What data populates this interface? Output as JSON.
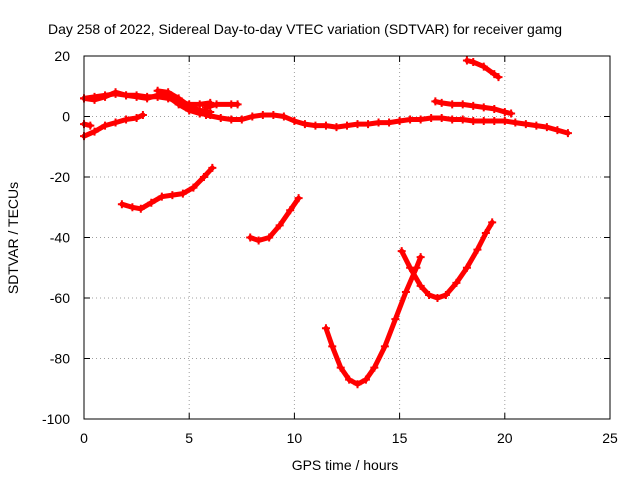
{
  "chart_data": {
    "type": "scatter",
    "title": "Day 258 of 2022, Sidereal Day-to-day VTEC variation (SDTVAR) for receiver gamg",
    "xlabel": "GPS time / hours",
    "ylabel": "SDTVAR / TECUs",
    "xlim": [
      0,
      25
    ],
    "ylim": [
      -100,
      20
    ],
    "xticks": [
      0,
      5,
      10,
      15,
      20,
      25
    ],
    "yticks": [
      -100,
      -80,
      -60,
      -40,
      -20,
      0,
      20
    ],
    "grid": true,
    "marker": "plus",
    "series_color": "#ff0000",
    "series": [
      {
        "name": "arc-1",
        "points": [
          [
            0,
            6
          ],
          [
            0.5,
            5.5
          ],
          [
            1,
            6.5
          ],
          [
            1.5,
            8
          ],
          [
            2,
            7
          ],
          [
            2.5,
            6.5
          ],
          [
            3,
            6
          ],
          [
            3.5,
            7
          ],
          [
            4,
            6.5
          ],
          [
            4.5,
            4
          ],
          [
            5,
            2
          ],
          [
            5.5,
            1
          ],
          [
            6,
            0.5
          ]
        ]
      },
      {
        "name": "arc-2",
        "points": [
          [
            0,
            6
          ],
          [
            0.5,
            6.5
          ],
          [
            1,
            7
          ],
          [
            1.5,
            7.5
          ],
          [
            2,
            7
          ],
          [
            2.5,
            7
          ],
          [
            3,
            6.5
          ],
          [
            3.5,
            6.5
          ],
          [
            4,
            6
          ],
          [
            4.5,
            5
          ],
          [
            5,
            4
          ],
          [
            5.5,
            4
          ],
          [
            6,
            4.5
          ]
        ]
      },
      {
        "name": "arc-3",
        "points": [
          [
            3.5,
            8.5
          ],
          [
            4,
            8
          ],
          [
            4.5,
            6
          ],
          [
            5,
            3.5
          ],
          [
            5.5,
            2
          ],
          [
            6,
            1.5
          ]
        ]
      },
      {
        "name": "arc-4",
        "points": [
          [
            5.8,
            3
          ],
          [
            6.3,
            4
          ],
          [
            7,
            4
          ],
          [
            7.3,
            4
          ]
        ]
      },
      {
        "name": "arc-5",
        "points": [
          [
            0,
            -6.5
          ],
          [
            0.5,
            -5
          ],
          [
            1,
            -3
          ],
          [
            1.5,
            -2
          ],
          [
            2,
            -1
          ],
          [
            2.5,
            -0.5
          ],
          [
            2.8,
            0.5
          ]
        ]
      },
      {
        "name": "arc-6",
        "points": [
          [
            0,
            -2.5
          ],
          [
            0.3,
            -3
          ]
        ]
      },
      {
        "name": "arc-7",
        "points": [
          [
            5.8,
            0.5
          ],
          [
            6.5,
            -0.5
          ],
          [
            7,
            -1
          ],
          [
            7.5,
            -1
          ],
          [
            8,
            0
          ],
          [
            8.5,
            0.5
          ],
          [
            9,
            0.5
          ],
          [
            9.5,
            0
          ],
          [
            10,
            -1.5
          ],
          [
            10.5,
            -2.5
          ],
          [
            11,
            -3
          ],
          [
            11.5,
            -3
          ],
          [
            12,
            -3.5
          ],
          [
            12.5,
            -3
          ],
          [
            13,
            -2.5
          ],
          [
            13.5,
            -2.5
          ],
          [
            14,
            -2
          ],
          [
            14.5,
            -2
          ],
          [
            15,
            -1.5
          ],
          [
            15.5,
            -1
          ],
          [
            16,
            -1
          ],
          [
            16.5,
            -0.5
          ],
          [
            17,
            -0.5
          ],
          [
            17.5,
            -1
          ],
          [
            18,
            -1
          ],
          [
            18.5,
            -1.5
          ],
          [
            19,
            -1.5
          ],
          [
            19.5,
            -1.5
          ],
          [
            20,
            -1.5
          ],
          [
            20.5,
            -2
          ],
          [
            21,
            -2.5
          ],
          [
            21.5,
            -3
          ],
          [
            22,
            -3.5
          ],
          [
            22.5,
            -4.5
          ],
          [
            23,
            -5.5
          ]
        ]
      },
      {
        "name": "arc-8",
        "points": [
          [
            16.7,
            5
          ],
          [
            17,
            4.5
          ],
          [
            17.5,
            4
          ],
          [
            18,
            4
          ],
          [
            18.5,
            3.5
          ],
          [
            19,
            3
          ],
          [
            19.5,
            2.5
          ],
          [
            20,
            1.5
          ],
          [
            20.3,
            1
          ]
        ]
      },
      {
        "name": "arc-9",
        "points": [
          [
            18.2,
            18.5
          ],
          [
            18.5,
            18
          ],
          [
            19,
            16.5
          ],
          [
            19.5,
            14
          ],
          [
            19.7,
            13
          ]
        ]
      },
      {
        "name": "arc-10",
        "points": [
          [
            1.8,
            -29
          ],
          [
            2.3,
            -30
          ],
          [
            2.7,
            -30.5
          ],
          [
            3.2,
            -28.5
          ],
          [
            3.7,
            -26.5
          ],
          [
            4.2,
            -26
          ],
          [
            4.7,
            -25.5
          ],
          [
            5.2,
            -23.5
          ],
          [
            5.7,
            -20
          ],
          [
            6.1,
            -17
          ]
        ]
      },
      {
        "name": "arc-11",
        "points": [
          [
            7.9,
            -40
          ],
          [
            8.3,
            -41
          ],
          [
            8.8,
            -40
          ],
          [
            9.3,
            -36
          ],
          [
            9.8,
            -31
          ],
          [
            10.2,
            -27
          ]
        ]
      },
      {
        "name": "arc-12",
        "points": [
          [
            11.5,
            -70
          ],
          [
            11.8,
            -76
          ],
          [
            12.2,
            -83
          ],
          [
            12.6,
            -87
          ],
          [
            13,
            -88.5
          ],
          [
            13.4,
            -87
          ],
          [
            13.8,
            -83
          ],
          [
            14.3,
            -76
          ],
          [
            14.8,
            -67
          ],
          [
            15.3,
            -58
          ],
          [
            15.8,
            -50
          ],
          [
            16,
            -46.5
          ]
        ]
      },
      {
        "name": "arc-13",
        "points": [
          [
            15.1,
            -44.5
          ],
          [
            15.5,
            -50
          ],
          [
            16,
            -56
          ],
          [
            16.4,
            -59
          ],
          [
            16.8,
            -60
          ],
          [
            17.2,
            -59
          ],
          [
            17.7,
            -55
          ],
          [
            18.2,
            -50
          ],
          [
            18.7,
            -44
          ],
          [
            19.1,
            -38.5
          ],
          [
            19.4,
            -35
          ]
        ]
      }
    ]
  }
}
